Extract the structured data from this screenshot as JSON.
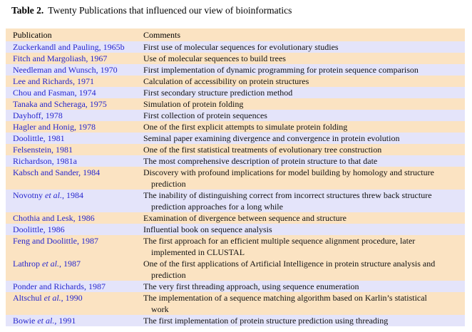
{
  "title": {
    "label": "Table 2.",
    "text": "Twenty Publications that influenced our view of bioinformatics"
  },
  "table": {
    "colors": {
      "header_bg": "#FBE3C2",
      "row_blue": "#E4E4FA",
      "row_peach": "#FBE3C2",
      "publication_text": "#2626CE",
      "comment_text": "#111111"
    },
    "headers": [
      "Publication",
      "Comments"
    ],
    "rows": [
      {
        "tint": "blue",
        "publication": [
          {
            "t": "Zuckerkandl and Pauling, 1965b"
          }
        ],
        "comment_lines": [
          "First use of molecular sequences for evolutionary studies"
        ]
      },
      {
        "tint": "peach",
        "publication": [
          {
            "t": "Fitch and Margoliash, 1967"
          }
        ],
        "comment_lines": [
          "Use of molecular sequences to build trees"
        ]
      },
      {
        "tint": "blue",
        "publication": [
          {
            "t": "Needleman and Wunsch, 1970"
          }
        ],
        "comment_lines": [
          "First implementation of dynamic programming for protein sequence comparison"
        ]
      },
      {
        "tint": "peach",
        "publication": [
          {
            "t": "Lee and Richards, 1971"
          }
        ],
        "comment_lines": [
          "Calculation of accessibility on protein structures"
        ]
      },
      {
        "tint": "blue",
        "publication": [
          {
            "t": "Chou and Fasman, 1974"
          }
        ],
        "comment_lines": [
          "First secondary structure prediction method"
        ]
      },
      {
        "tint": "peach",
        "publication": [
          {
            "t": "Tanaka and Scheraga, 1975"
          }
        ],
        "comment_lines": [
          "Simulation of protein folding"
        ]
      },
      {
        "tint": "blue",
        "publication": [
          {
            "t": "Dayhoff, 1978"
          }
        ],
        "comment_lines": [
          "First collection of protein sequences"
        ]
      },
      {
        "tint": "peach",
        "publication": [
          {
            "t": "Hagler and Honig, 1978"
          }
        ],
        "comment_lines": [
          "One of the first explicit attempts to simulate protein folding"
        ]
      },
      {
        "tint": "blue",
        "publication": [
          {
            "t": "Doolittle, 1981"
          }
        ],
        "comment_lines": [
          "Seminal paper examining divergence and convergence in protein evolution"
        ]
      },
      {
        "tint": "peach",
        "publication": [
          {
            "t": "Felsenstein, 1981"
          }
        ],
        "comment_lines": [
          "One of the first statistical treatments of evolutionary tree construction"
        ]
      },
      {
        "tint": "blue",
        "publication": [
          {
            "t": "Richardson, 1981a"
          }
        ],
        "comment_lines": [
          "The most comprehensive description of protein structure to that date"
        ]
      },
      {
        "tint": "peach",
        "publication": [
          {
            "t": "Kabsch and Sander, 1984"
          }
        ],
        "comment_lines": [
          "Discovery with profound implications for model building by homology and structure",
          "prediction"
        ]
      },
      {
        "tint": "blue",
        "publication": [
          {
            "t": "Novotny "
          },
          {
            "t": "et al.",
            "i": true
          },
          {
            "t": ", 1984"
          }
        ],
        "comment_lines": [
          "The inability of distinguishing correct from incorrect structures threw back structure",
          "prediction approaches for a long while"
        ]
      },
      {
        "tint": "peach",
        "publication": [
          {
            "t": "Chothia and Lesk, 1986"
          }
        ],
        "comment_lines": [
          "Examination of divergence between sequence and structure"
        ]
      },
      {
        "tint": "blue",
        "publication": [
          {
            "t": "Doolittle, 1986"
          }
        ],
        "comment_lines": [
          "Influential book on sequence analysis"
        ]
      },
      {
        "tint": "peach",
        "publication": [
          {
            "t": "Feng and Doolittle, 1987"
          }
        ],
        "comment_lines": [
          "The first approach for an efficient multiple sequence alignment procedure, later",
          "implemented in CLUSTAL"
        ]
      },
      {
        "tint": "peach",
        "publication": [
          {
            "t": "Lathrop "
          },
          {
            "t": "et al.",
            "i": true
          },
          {
            "t": ", 1987"
          }
        ],
        "comment_lines": [
          "One of the first applications of Artificial Intelligence in protein structure analysis and",
          "prediction"
        ]
      },
      {
        "tint": "blue",
        "publication": [
          {
            "t": "Ponder and Richards, 1987"
          }
        ],
        "comment_lines": [
          "The very first threading approach, using sequence enumeration"
        ]
      },
      {
        "tint": "peach",
        "publication": [
          {
            "t": "Altschul "
          },
          {
            "t": "et al.",
            "i": true
          },
          {
            "t": ", 1990"
          }
        ],
        "comment_lines": [
          "The implementation of a sequence matching algorithm based on Karlin’s statistical",
          "work"
        ]
      },
      {
        "tint": "blue",
        "publication": [
          {
            "t": "Bowie "
          },
          {
            "t": "et al.",
            "i": true
          },
          {
            "t": ", 1991"
          }
        ],
        "comment_lines": [
          "The first implementation of protein structure prediction using threading"
        ]
      }
    ]
  }
}
